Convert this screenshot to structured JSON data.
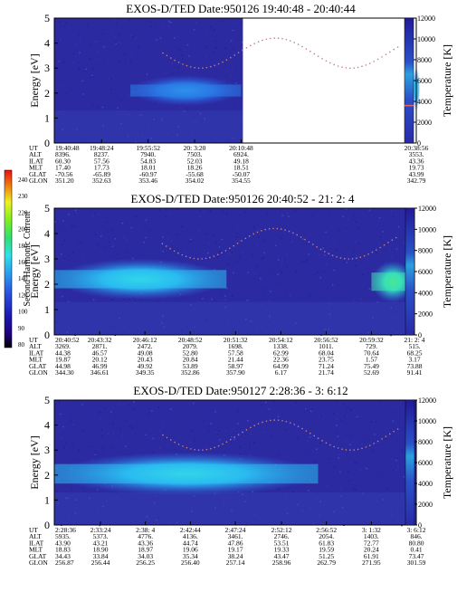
{
  "colorbar": {
    "label": "Second Harmonic Current",
    "ticks": [
      "240",
      "230",
      "220",
      "200",
      "180",
      "160",
      "140",
      "120",
      "100",
      "90",
      "80"
    ]
  },
  "panels": [
    {
      "title": "EXOS-D/TED   Date:950126  19:40:48 - 20:40:44",
      "ylabel": "Energy [eV]",
      "y2label": "Temperature [K]",
      "yticks": [
        "0",
        "1",
        "2",
        "3",
        "4",
        "5"
      ],
      "y2ticks": [
        "0",
        "2000",
        "4000",
        "6000",
        "8000",
        "10000",
        "12000"
      ],
      "rowlabels": [
        "UT",
        "ALT",
        "ILAT",
        "MLT",
        "GLAT",
        "GLON"
      ],
      "columns": [
        {
          "vals": [
            "19:40:48",
            "8396.",
            "60.30",
            "17.40",
            "-70.56",
            "351.20"
          ]
        },
        {
          "vals": [
            "19:48:24",
            "8237.",
            "57.56",
            "17.73",
            "-65.89",
            "352.63"
          ]
        },
        {
          "vals": [
            "19:55:52",
            "7940.",
            "54.83",
            "18.01",
            "-60.97",
            "353.46"
          ]
        },
        {
          "vals": [
            "20: 3:20",
            "7503.",
            "52.03",
            "18.26",
            "-55.68",
            "354.02"
          ]
        },
        {
          "vals": [
            "20:10:48",
            "6924.",
            "49.18",
            "18.51",
            "-50.07",
            "354.55"
          ]
        },
        {
          "vals": [
            "20:38:56",
            "3553.",
            "43.36",
            "19.73",
            "43.99",
            "342.79"
          ]
        }
      ]
    },
    {
      "title": "EXOS-D/TED   Date:950126  20:40:52 - 21: 2: 4",
      "ylabel": "Energy [eV]",
      "y2label": "Temperature [K]",
      "yticks": [
        "0",
        "1",
        "2",
        "3",
        "4",
        "5"
      ],
      "y2ticks": [
        "0",
        "2000",
        "4000",
        "6000",
        "8000",
        "10000",
        "12000"
      ],
      "rowlabels": [
        "UT",
        "ALT",
        "ILAT",
        "MLT",
        "GLAT",
        "GLON"
      ],
      "columns": [
        {
          "vals": [
            "20:40:52",
            "3269.",
            "44.38",
            "19.87",
            "44.98",
            "344.30"
          ]
        },
        {
          "vals": [
            "20:43:32",
            "2871.",
            "46.57",
            "20.12",
            "46.99",
            "346.61"
          ]
        },
        {
          "vals": [
            "20:46:12",
            "2472.",
            "49.08",
            "20.43",
            "49.92",
            "349.35"
          ]
        },
        {
          "vals": [
            "20:48:52",
            "2079.",
            "52.80",
            "20.84",
            "53.89",
            "352.86"
          ]
        },
        {
          "vals": [
            "20:51:32",
            "1698.",
            "57.58",
            "21.44",
            "58.97",
            "357.90"
          ]
        },
        {
          "vals": [
            "20:54:12",
            "1338.",
            "62.99",
            "22.36",
            "64.99",
            "6.17"
          ]
        },
        {
          "vals": [
            "20:56:52",
            "1011.",
            "68.04",
            "23.75",
            "71.24",
            "21.74"
          ]
        },
        {
          "vals": [
            "20:59:32",
            "729.",
            "70.64",
            "1.57",
            "75.49",
            "52.69"
          ]
        },
        {
          "vals": [
            "21: 2: 4",
            "515.",
            "68.25",
            "3.17",
            "73.88",
            "91.41"
          ]
        }
      ]
    },
    {
      "title": "EXOS-D/TED   Date:950127  2:28:36 - 3: 6:12",
      "ylabel": "Energy [eV]",
      "y2label": "Temperature [K]",
      "yticks": [
        "0",
        "1",
        "2",
        "3",
        "4",
        "5"
      ],
      "y2ticks": [
        "0",
        "2000",
        "4000",
        "6000",
        "8000",
        "10000",
        "12000"
      ],
      "rowlabels": [
        "UT",
        "ALT",
        "ILAT",
        "MLT",
        "GLAT",
        "GLON"
      ],
      "columns": [
        {
          "vals": [
            "2:28:36",
            "5935.",
            "43.90",
            "18.83",
            "34.43",
            "256.87"
          ]
        },
        {
          "vals": [
            "2:33:24",
            "5373.",
            "43.21",
            "18.90",
            "33.84",
            "256.44"
          ]
        },
        {
          "vals": [
            "2:38: 4",
            "4776.",
            "43.36",
            "18.97",
            "34.03",
            "256.25"
          ]
        },
        {
          "vals": [
            "2:42:44",
            "4136.",
            "44.74",
            "19.06",
            "35.34",
            "256.40"
          ]
        },
        {
          "vals": [
            "2:47:24",
            "3461.",
            "47.86",
            "19.17",
            "38.24",
            "257.14"
          ]
        },
        {
          "vals": [
            "2:52:12",
            "2746.",
            "53.51",
            "19.33",
            "43.47",
            "258.96"
          ]
        },
        {
          "vals": [
            "2:56:52",
            "2054.",
            "61.83",
            "19.59",
            "51.25",
            "262.79"
          ]
        },
        {
          "vals": [
            "3: 1:32",
            "1403.",
            "72.77",
            "20.24",
            "61.91",
            "271.95"
          ]
        },
        {
          "vals": [
            "3: 6:12",
            "846.",
            "80.80",
            "0.41",
            "73.47",
            "301.59"
          ]
        }
      ]
    }
  ],
  "chart_data": [
    {
      "type": "heatmap",
      "title": "EXOS-D/TED   Date:950126  19:40:48 - 20:40:44",
      "xlabel": "UT",
      "ylabel": "Energy [eV]",
      "y2label": "Temperature [K]",
      "ylim": [
        0,
        5
      ],
      "y2lim": [
        0,
        12000
      ],
      "x_ticks": [
        "19:40:48",
        "19:48:24",
        "19:55:52",
        "20: 3:20",
        "20:10:48",
        "20:38:56"
      ],
      "colorbar_label": "Second Harmonic Current",
      "colorbar_range": [
        80,
        240
      ],
      "data_gap": [
        "20:10:48",
        "20:38:56"
      ],
      "features": [
        {
          "kind": "band",
          "x_start": "19:53:00",
          "x_end": "20:10:48",
          "energy_low": 1.7,
          "energy_high": 2.5,
          "level": 130
        },
        {
          "kind": "band",
          "x_start": "20:38:56",
          "x_end": "20:40:44",
          "energy_low": 1.5,
          "energy_high": 2.8,
          "level": 150
        }
      ]
    },
    {
      "type": "heatmap",
      "title": "EXOS-D/TED   Date:950126  20:40:52 - 21: 2: 4",
      "xlabel": "UT",
      "ylabel": "Energy [eV]",
      "y2label": "Temperature [K]",
      "ylim": [
        0,
        5
      ],
      "y2lim": [
        0,
        12000
      ],
      "x_ticks": [
        "20:40:52",
        "20:43:32",
        "20:46:12",
        "20:48:52",
        "20:51:32",
        "20:54:12",
        "20:56:52",
        "20:59:32",
        "21: 2: 4"
      ],
      "colorbar_label": "Second Harmonic Current",
      "colorbar_range": [
        80,
        240
      ],
      "features": [
        {
          "kind": "band",
          "x_start": "20:40:52",
          "x_end": "20:51:00",
          "energy_low": 1.6,
          "energy_high": 2.8,
          "level": 150
        },
        {
          "kind": "band",
          "x_start": "20:59:32",
          "x_end": "21: 2: 4",
          "energy_low": 1.5,
          "energy_high": 2.7,
          "level": 175
        }
      ]
    },
    {
      "type": "heatmap",
      "title": "EXOS-D/TED   Date:950127  2:28:36 - 3: 6:12",
      "xlabel": "UT",
      "ylabel": "Energy [eV]",
      "y2label": "Temperature [K]",
      "ylim": [
        0,
        5
      ],
      "y2lim": [
        0,
        12000
      ],
      "x_ticks": [
        "2:28:36",
        "2:33:24",
        "2:38: 4",
        "2:42:44",
        "2:47:24",
        "2:52:12",
        "2:56:52",
        "3: 1:32",
        "3: 6:12"
      ],
      "colorbar_label": "Second Harmonic Current",
      "colorbar_range": [
        80,
        240
      ],
      "features": [
        {
          "kind": "band",
          "x_start": "2:28:36",
          "x_end": "2:56:00",
          "energy_low": 1.4,
          "energy_high": 2.7,
          "level": 155
        }
      ]
    }
  ]
}
